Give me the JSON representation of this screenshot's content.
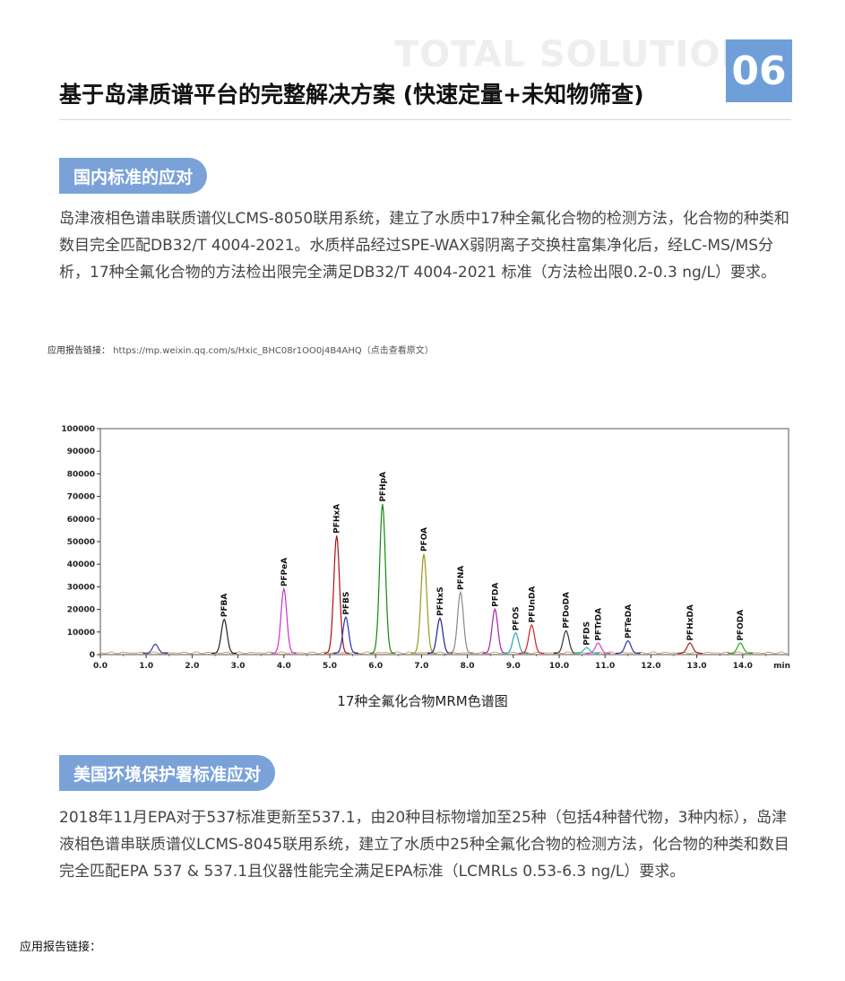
{
  "header": {
    "watermark": "TOTAL SOLUTION",
    "page_number": "06",
    "title": "基于岛津质谱平台的完整解决方案 (快速定量+未知物筛查)"
  },
  "section1": {
    "tag": "国内标准的应对",
    "paragraph": "岛津液相色谱串联质谱仪LCMS-8050联用系统，建立了水质中17种全氟化合物的检测方法，化合物的种类和数目完全匹配DB32/T 4004-2021。水质样品经过SPE-WAX弱阴离子交换柱富集净化后，经LC-MS/MS分析，17种全氟化合物的方法检出限完全满足DB32/T 4004-2021 标准（方法检出限0.2-0.3 ng/L）要求。",
    "report_link_label": "应用报告链接：",
    "report_link_url": "https://mp.weixin.qq.com/s/Hxic_BHC08r1OO0j4B4AHQ（点击查看原文）"
  },
  "chart_data": {
    "type": "line",
    "title": "17种全氟化合物MRM色谱图",
    "xlabel": "min",
    "ylabel": "",
    "xlim": [
      0.0,
      15.0
    ],
    "ylim": [
      0,
      100000
    ],
    "x_ticks": [
      "0.0",
      "1.0",
      "2.0",
      "3.0",
      "4.0",
      "5.0",
      "6.0",
      "7.0",
      "8.0",
      "9.0",
      "10.0",
      "11.0",
      "12.0",
      "13.0",
      "14.0"
    ],
    "y_ticks": [
      "0",
      "10000",
      "20000",
      "30000",
      "40000",
      "50000",
      "60000",
      "70000",
      "80000",
      "90000",
      "100000"
    ],
    "grid": false,
    "peaks": [
      {
        "name": "",
        "rt": 1.2,
        "height": 4000,
        "color": "#3a3aa0"
      },
      {
        "name": "PFBA",
        "rt": 2.7,
        "height": 15000,
        "color": "#222222"
      },
      {
        "name": "PFPeA",
        "rt": 4.0,
        "height": 28500,
        "color": "#cc33cc"
      },
      {
        "name": "PFHxA",
        "rt": 5.15,
        "height": 52000,
        "color": "#aa1111"
      },
      {
        "name": "PFBS",
        "rt": 5.35,
        "height": 16000,
        "color": "#2233aa"
      },
      {
        "name": "PFHpA",
        "rt": 6.15,
        "height": 66000,
        "color": "#118811"
      },
      {
        "name": "PFOA",
        "rt": 7.05,
        "height": 44000,
        "color": "#999922"
      },
      {
        "name": "PFHxS",
        "rt": 7.4,
        "height": 15500,
        "color": "#222288"
      },
      {
        "name": "PFNA",
        "rt": 7.85,
        "height": 27000,
        "color": "#888888"
      },
      {
        "name": "PFDA",
        "rt": 8.6,
        "height": 19500,
        "color": "#aa22aa"
      },
      {
        "name": "PFOS",
        "rt": 9.05,
        "height": 9000,
        "color": "#22aaaa"
      },
      {
        "name": "PFUnDA",
        "rt": 9.4,
        "height": 12500,
        "color": "#cc2222"
      },
      {
        "name": "PFDoDA",
        "rt": 10.15,
        "height": 10000,
        "color": "#333333"
      },
      {
        "name": "PFDS",
        "rt": 10.6,
        "height": 2500,
        "color": "#22bbbb"
      },
      {
        "name": "PFTrDA",
        "rt": 10.85,
        "height": 4500,
        "color": "#cc44cc"
      },
      {
        "name": "PFTeDA",
        "rt": 11.5,
        "height": 5500,
        "color": "#3333aa"
      },
      {
        "name": "PFHxDA",
        "rt": 12.85,
        "height": 4500,
        "color": "#aa2222"
      },
      {
        "name": "PFODA",
        "rt": 13.95,
        "height": 4500,
        "color": "#22aa22"
      }
    ]
  },
  "section2": {
    "tag": "美国环境保护署标准应对",
    "paragraph": "2018年11月EPA对于537标准更新至537.1，由20种目标物增加至25种（包括4种替代物，3种内标），岛津液相色谱串联质谱仪LCMS-8045联用系统，建立了水质中25种全氟化合物的检测方法，化合物的种类和数目完全匹配EPA 537 & 537.1且仪器性能完全满足EPA标准（LCMRLs 0.53-6.3 ng/L）要求。"
  },
  "footer": {
    "report_link_label": "应用报告链接："
  }
}
